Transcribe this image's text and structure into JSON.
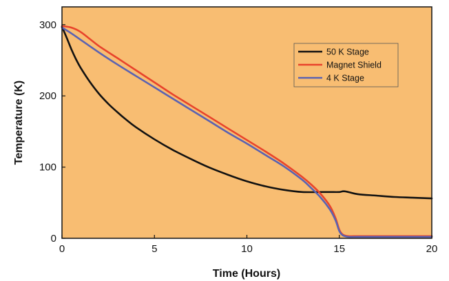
{
  "chart_data": {
    "type": "line",
    "xlabel": "Time (Hours)",
    "ylabel": "Temperature (K)",
    "xlim": [
      0,
      20
    ],
    "ylim": [
      0,
      325
    ],
    "xticks": [
      0,
      5,
      10,
      15,
      20
    ],
    "yticks": [
      0,
      100,
      200,
      300
    ],
    "grid": false,
    "legend_position": "top-right",
    "background_color": "#f8bd72",
    "series": [
      {
        "name": "50 K Stage",
        "color": "#111111",
        "x": [
          0,
          0.25,
          0.5,
          0.75,
          1,
          1.5,
          2,
          2.5,
          3,
          3.5,
          4,
          5,
          6,
          7,
          8,
          9,
          10,
          11,
          12,
          13,
          14,
          14.5,
          15,
          15.3,
          16,
          17,
          18,
          19,
          20
        ],
        "y": [
          297,
          282,
          266,
          252,
          240,
          220,
          203,
          189,
          177,
          166,
          156,
          139,
          124,
          111,
          99,
          89,
          80,
          73,
          68,
          65,
          65,
          65,
          65,
          66,
          62,
          60,
          58,
          57,
          56
        ]
      },
      {
        "name": "Magnet Shield",
        "color": "#e8432b",
        "x": [
          0,
          0.5,
          1,
          1.5,
          2,
          3,
          4,
          5,
          6,
          7,
          8,
          9,
          10,
          11,
          12,
          13,
          13.5,
          14,
          14.5,
          14.8,
          15,
          15.2,
          15.5,
          16,
          17,
          18,
          19,
          20
        ],
        "y": [
          298,
          296,
          290,
          280,
          270,
          253,
          236,
          219,
          202,
          186,
          170,
          154,
          138,
          122,
          105,
          86,
          75,
          62,
          45,
          28,
          12,
          5,
          3,
          3,
          3,
          3,
          3,
          3
        ]
      },
      {
        "name": "4 K Stage",
        "color": "#5a62b2",
        "x": [
          0,
          0.5,
          1,
          2,
          3,
          4,
          5,
          6,
          7,
          8,
          9,
          10,
          11,
          12,
          13,
          13.5,
          14,
          14.5,
          14.8,
          15,
          15.2,
          15.5,
          16,
          17,
          18,
          19,
          20
        ],
        "y": [
          296,
          288,
          279,
          261,
          244,
          228,
          212,
          196,
          180,
          164,
          148,
          133,
          117,
          101,
          82,
          70,
          57,
          40,
          25,
          10,
          4,
          2,
          2,
          2,
          2,
          2,
          2
        ]
      }
    ]
  }
}
